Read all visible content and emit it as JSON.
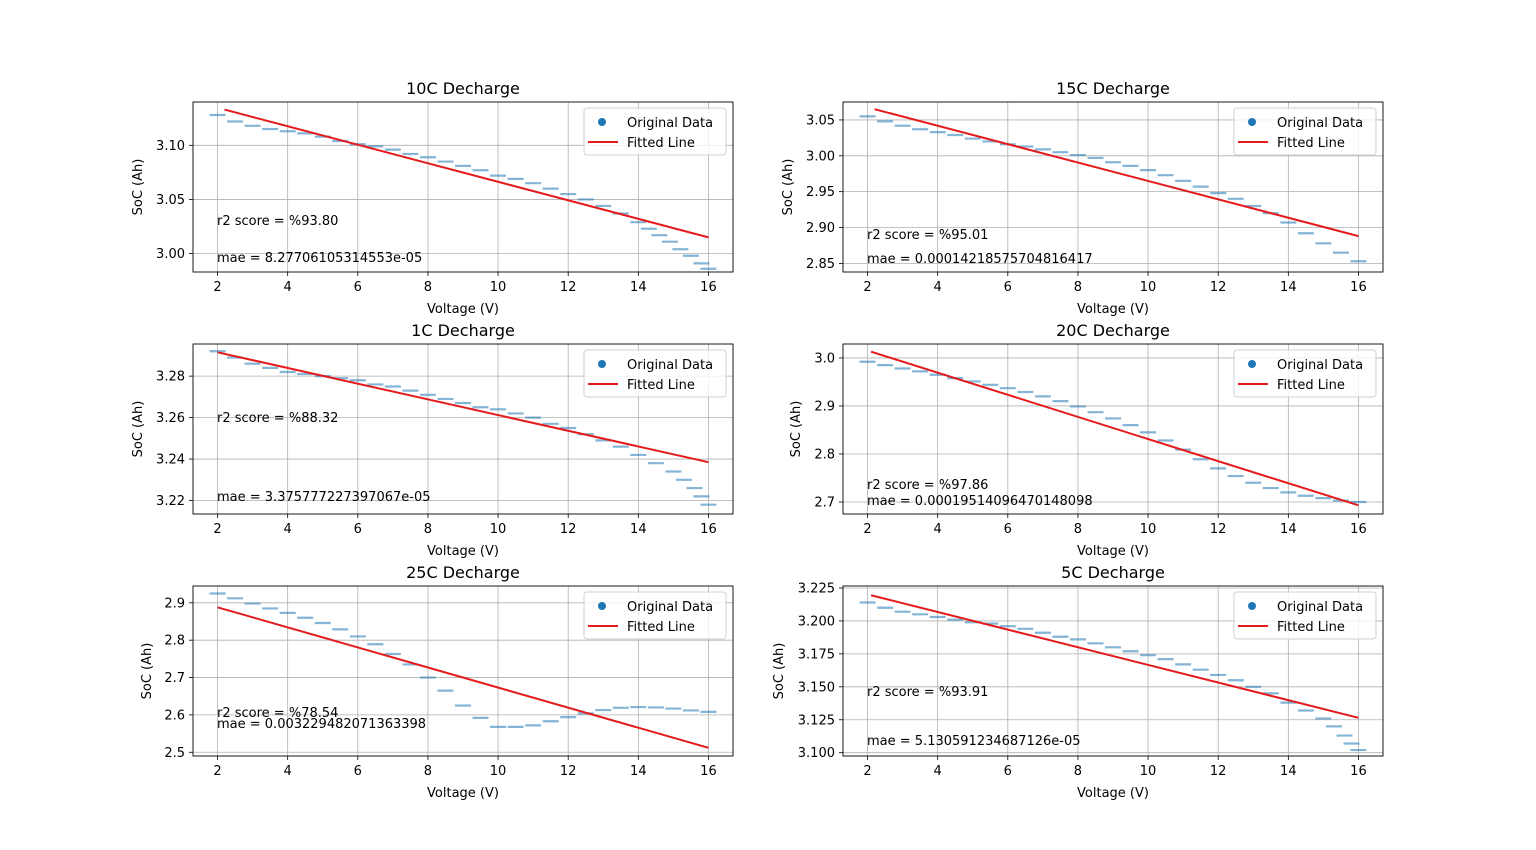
{
  "legend": {
    "original_label": "Original Data",
    "fitted_label": "Fitted Line"
  },
  "colors": {
    "scatter": "#1f77b4",
    "fit": "#e41a1c",
    "grid": "#b0b0b0"
  },
  "chart_data": [
    {
      "type": "scatter",
      "title": "10C Decharge",
      "xlabel": "Voltage (V)",
      "ylabel": "SoC (Ah)",
      "xlim": [
        1.3,
        16.7
      ],
      "ylim": [
        2.983,
        3.14
      ],
      "xticks": [
        2,
        4,
        6,
        8,
        10,
        12,
        14,
        16
      ],
      "yticks": [
        3.0,
        3.05,
        3.1
      ],
      "ytick_labels": [
        "3.00",
        "3.05",
        "3.10"
      ],
      "scatter": {
        "x": [
          2.0,
          2.5,
          3.0,
          3.5,
          4.0,
          4.5,
          5.0,
          5.5,
          6.0,
          6.5,
          7.0,
          7.5,
          8.0,
          8.5,
          9.0,
          9.5,
          10.0,
          10.5,
          11.0,
          11.5,
          12.0,
          12.5,
          13.0,
          13.5,
          14.0,
          14.3,
          14.6,
          14.9,
          15.2,
          15.5,
          15.8,
          16.0
        ],
        "y": [
          3.128,
          3.122,
          3.118,
          3.115,
          3.113,
          3.111,
          3.108,
          3.104,
          3.101,
          3.099,
          3.096,
          3.092,
          3.089,
          3.085,
          3.081,
          3.077,
          3.072,
          3.069,
          3.065,
          3.06,
          3.055,
          3.05,
          3.044,
          3.037,
          3.029,
          3.023,
          3.017,
          3.011,
          3.004,
          2.998,
          2.991,
          2.986
        ]
      },
      "fit": {
        "x": [
          2.2,
          16.0
        ],
        "y": [
          3.133,
          3.015
        ]
      },
      "annotations": [
        "r2 score = %93.80",
        "mae = 8.27706105314553e-05"
      ]
    },
    {
      "type": "scatter",
      "title": "15C Decharge",
      "xlabel": "Voltage (V)",
      "ylabel": "SoC (Ah)",
      "xlim": [
        1.3,
        16.7
      ],
      "ylim": [
        2.838,
        3.075
      ],
      "xticks": [
        2,
        4,
        6,
        8,
        10,
        12,
        14,
        16
      ],
      "yticks": [
        2.85,
        2.9,
        2.95,
        3.0,
        3.05
      ],
      "ytick_labels": [
        "2.85",
        "2.90",
        "2.95",
        "3.00",
        "3.05"
      ],
      "scatter": {
        "x": [
          2.0,
          2.5,
          3.0,
          3.5,
          4.0,
          4.5,
          5.0,
          5.5,
          6.0,
          6.5,
          7.0,
          7.5,
          8.0,
          8.5,
          9.0,
          9.5,
          10.0,
          10.5,
          11.0,
          11.5,
          12.0,
          12.5,
          13.0,
          13.5,
          14.0,
          14.5,
          15.0,
          15.5,
          16.0
        ],
        "y": [
          3.055,
          3.048,
          3.042,
          3.037,
          3.033,
          3.029,
          3.024,
          3.02,
          3.016,
          3.013,
          3.009,
          3.005,
          3.001,
          2.997,
          2.991,
          2.986,
          2.98,
          2.973,
          2.965,
          2.957,
          2.948,
          2.94,
          2.93,
          2.92,
          2.907,
          2.892,
          2.878,
          2.865,
          2.853
        ]
      },
      "fit": {
        "x": [
          2.2,
          16.0
        ],
        "y": [
          3.065,
          2.888
        ]
      },
      "annotations": [
        "r2 score = %95.01",
        "mae = 0.00014218575704816417"
      ]
    },
    {
      "type": "scatter",
      "title": "1C Decharge",
      "xlabel": "Voltage (V)",
      "ylabel": "SoC (Ah)",
      "xlim": [
        1.3,
        16.7
      ],
      "ylim": [
        3.2135,
        3.2955
      ],
      "xticks": [
        2,
        4,
        6,
        8,
        10,
        12,
        14,
        16
      ],
      "yticks": [
        3.22,
        3.24,
        3.26,
        3.28
      ],
      "ytick_labels": [
        "3.22",
        "3.24",
        "3.26",
        "3.28"
      ],
      "scatter": {
        "x": [
          2.0,
          2.5,
          3.0,
          3.5,
          4.0,
          4.5,
          5.0,
          5.5,
          6.0,
          6.5,
          7.0,
          7.5,
          8.0,
          8.5,
          9.0,
          9.5,
          10.0,
          10.5,
          11.0,
          11.5,
          12.0,
          12.5,
          13.0,
          13.5,
          14.0,
          14.5,
          15.0,
          15.3,
          15.6,
          15.8,
          16.0
        ],
        "y": [
          3.292,
          3.289,
          3.286,
          3.284,
          3.282,
          3.281,
          3.28,
          3.279,
          3.278,
          3.276,
          3.275,
          3.273,
          3.271,
          3.269,
          3.267,
          3.265,
          3.264,
          3.262,
          3.26,
          3.257,
          3.255,
          3.252,
          3.249,
          3.246,
          3.242,
          3.238,
          3.234,
          3.23,
          3.226,
          3.222,
          3.218
        ]
      },
      "fit": {
        "x": [
          2.0,
          16.0
        ],
        "y": [
          3.2915,
          3.2385
        ]
      },
      "annotations": [
        "r2 score = %88.32",
        "mae = 3.375777227397067e-05"
      ]
    },
    {
      "type": "scatter",
      "title": "20C Decharge",
      "xlabel": "Voltage (V)",
      "ylabel": "SoC (Ah)",
      "xlim": [
        1.3,
        16.7
      ],
      "ylim": [
        2.675,
        3.029
      ],
      "xticks": [
        2,
        4,
        6,
        8,
        10,
        12,
        14,
        16
      ],
      "yticks": [
        2.7,
        2.8,
        2.9,
        3.0
      ],
      "ytick_labels": [
        "2.7",
        "2.8",
        "2.9",
        "3.0"
      ],
      "scatter": {
        "x": [
          2.0,
          2.5,
          3.0,
          3.5,
          4.0,
          4.5,
          5.0,
          5.5,
          6.0,
          6.5,
          7.0,
          7.5,
          8.0,
          8.5,
          9.0,
          9.5,
          10.0,
          10.5,
          11.0,
          11.5,
          12.0,
          12.5,
          13.0,
          13.5,
          14.0,
          14.5,
          15.0,
          15.5,
          16.0
        ],
        "y": [
          2.992,
          2.985,
          2.978,
          2.972,
          2.965,
          2.958,
          2.951,
          2.944,
          2.937,
          2.929,
          2.92,
          2.91,
          2.899,
          2.887,
          2.874,
          2.86,
          2.845,
          2.828,
          2.809,
          2.789,
          2.77,
          2.754,
          2.74,
          2.729,
          2.72,
          2.713,
          2.708,
          2.703,
          2.7
        ]
      },
      "fit": {
        "x": [
          2.1,
          16.0
        ],
        "y": [
          3.013,
          2.693
        ]
      },
      "annotations": [
        "r2 score = %97.86",
        "mae = 0.00019514096470148098"
      ]
    },
    {
      "type": "scatter",
      "title": "25C Decharge",
      "xlabel": "Voltage (V)",
      "ylabel": "SoC (Ah)",
      "xlim": [
        1.3,
        16.7
      ],
      "ylim": [
        2.49,
        2.945
      ],
      "xticks": [
        2,
        4,
        6,
        8,
        10,
        12,
        14,
        16
      ],
      "yticks": [
        2.5,
        2.6,
        2.7,
        2.8,
        2.9
      ],
      "ytick_labels": [
        "2.5",
        "2.6",
        "2.7",
        "2.8",
        "2.9"
      ],
      "scatter": {
        "x": [
          2.0,
          2.5,
          3.0,
          3.5,
          4.0,
          4.5,
          5.0,
          5.5,
          6.0,
          6.5,
          7.0,
          7.5,
          8.0,
          8.5,
          9.0,
          9.5,
          10.0,
          10.5,
          11.0,
          11.5,
          12.0,
          12.5,
          13.0,
          13.5,
          14.0,
          14.5,
          15.0,
          15.5,
          16.0
        ],
        "y": [
          2.925,
          2.912,
          2.898,
          2.885,
          2.873,
          2.86,
          2.846,
          2.829,
          2.81,
          2.789,
          2.763,
          2.735,
          2.7,
          2.665,
          2.625,
          2.592,
          2.568,
          2.568,
          2.572,
          2.583,
          2.594,
          2.604,
          2.613,
          2.619,
          2.621,
          2.62,
          2.617,
          2.612,
          2.608
        ]
      },
      "fit": {
        "x": [
          2.0,
          16.0
        ],
        "y": [
          2.888,
          2.512
        ]
      },
      "annotations": [
        "r2 score = %78.54",
        "mae = 0.003229482071363398"
      ]
    },
    {
      "type": "scatter",
      "title": "5C Decharge",
      "xlabel": "Voltage (V)",
      "ylabel": "SoC (Ah)",
      "xlim": [
        1.3,
        16.7
      ],
      "ylim": [
        3.0975,
        3.2265
      ],
      "xticks": [
        2,
        4,
        6,
        8,
        10,
        12,
        14,
        16
      ],
      "yticks": [
        3.1,
        3.125,
        3.15,
        3.175,
        3.2,
        3.225
      ],
      "ytick_labels": [
        "3.100",
        "3.125",
        "3.150",
        "3.175",
        "3.200",
        "3.225"
      ],
      "scatter": {
        "x": [
          2.0,
          2.5,
          3.0,
          3.5,
          4.0,
          4.5,
          5.0,
          5.5,
          6.0,
          6.5,
          7.0,
          7.5,
          8.0,
          8.5,
          9.0,
          9.5,
          10.0,
          10.5,
          11.0,
          11.5,
          12.0,
          12.5,
          13.0,
          13.5,
          14.0,
          14.5,
          15.0,
          15.3,
          15.6,
          15.8,
          16.0
        ],
        "y": [
          3.214,
          3.21,
          3.207,
          3.205,
          3.203,
          3.201,
          3.199,
          3.198,
          3.196,
          3.194,
          3.191,
          3.188,
          3.186,
          3.183,
          3.18,
          3.177,
          3.174,
          3.171,
          3.167,
          3.163,
          3.159,
          3.155,
          3.15,
          3.145,
          3.138,
          3.132,
          3.126,
          3.12,
          3.113,
          3.107,
          3.102
        ]
      },
      "fit": {
        "x": [
          2.1,
          16.0
        ],
        "y": [
          3.2195,
          3.1265
        ]
      },
      "annotations": [
        "r2 score = %93.91",
        "mae = 5.130591234687126e-05"
      ]
    }
  ]
}
